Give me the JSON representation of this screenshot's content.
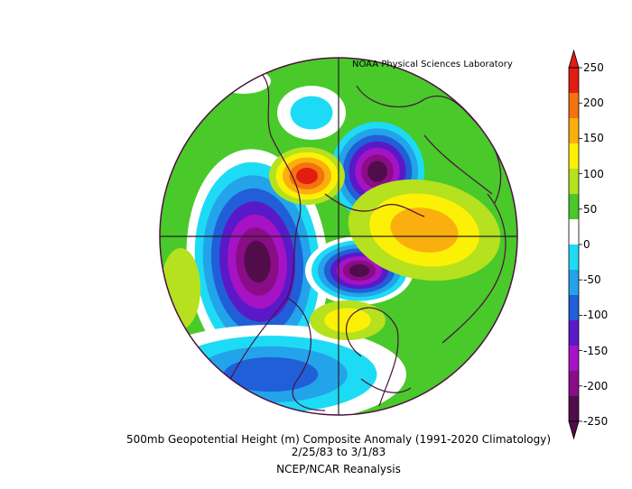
{
  "lab_label": "NOAA Physical Sciences Laboratory",
  "caption": {
    "line1": "500mb Geopotential Height (m) Composite Anomaly (1991-2020 Climatology)",
    "line2": "2/25/83   to 3/1/83",
    "line3": "NCEP/NCAR Reanalysis"
  },
  "colorbar": {
    "ticks": [
      "250",
      "200",
      "150",
      "100",
      "50",
      "0",
      "-50",
      "-100",
      "-150",
      "-200",
      "-250"
    ],
    "colors": [
      "#e21d13",
      "#f5720c",
      "#fbaf0e",
      "#fcf007",
      "#b5e11e",
      "#49c92a",
      "#ffffff",
      "#1edbf5",
      "#23a3ea",
      "#205fd7",
      "#5a19c8",
      "#a513c4",
      "#8a0c86",
      "#500d4a"
    ],
    "min_color": "#500d4a",
    "max_color": "#e21d13"
  },
  "map": {
    "projection": "north polar stereographic",
    "colors": {
      "background": "#49c92a",
      "light_green": "#b5e11e",
      "yellow": "#fcf007",
      "orange": "#fbaf0e",
      "dark_orange": "#f5720c",
      "red": "#e21d13",
      "white": "#ffffff",
      "cyan": "#1edbf5",
      "light_blue": "#23a3ea",
      "blue": "#205fd7",
      "indigo": "#5a19c8",
      "purple": "#a513c4",
      "magenta_dark": "#8a0c86",
      "darkest": "#500d4a",
      "coastline": "#4b1040"
    }
  }
}
